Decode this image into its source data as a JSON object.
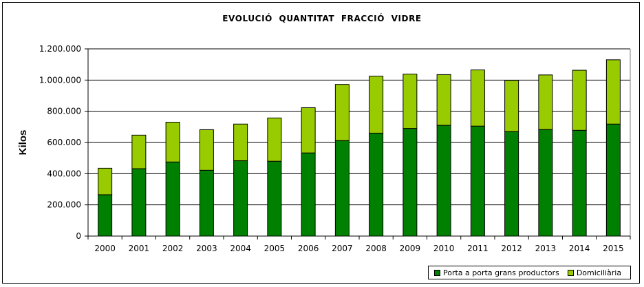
{
  "chart_data": {
    "type": "bar",
    "stacked": true,
    "title": "EVOLUCIÓ  QUANTITAT  FRACCIÓ  VIDRE",
    "xlabel": "",
    "ylabel": "Kilos",
    "ylim": [
      0,
      1200000
    ],
    "yticks": [
      0,
      200000,
      400000,
      600000,
      800000,
      1000000,
      1200000
    ],
    "ytick_labels": [
      "0",
      "200.000",
      "400.000",
      "600.000",
      "800.000",
      "1.000.000",
      "1.200.000"
    ],
    "grid": true,
    "legend_position": "bottom-right",
    "categories": [
      "2000",
      "2001",
      "2002",
      "2003",
      "2004",
      "2005",
      "2006",
      "2007",
      "2008",
      "2009",
      "2010",
      "2011",
      "2012",
      "2013",
      "2014",
      "2015"
    ],
    "series": [
      {
        "name": "Porta a porta grans productors",
        "color": "#008000",
        "values": [
          265000,
          432000,
          475000,
          422000,
          483000,
          480000,
          533000,
          612000,
          660000,
          690000,
          710000,
          705000,
          670000,
          683000,
          678000,
          718000
        ]
      },
      {
        "name": "Domiciliària",
        "color": "#99CC00",
        "values": [
          170000,
          215000,
          255000,
          260000,
          235000,
          277000,
          290000,
          360000,
          365000,
          348000,
          325000,
          360000,
          328000,
          350000,
          385000,
          412000
        ]
      }
    ]
  }
}
